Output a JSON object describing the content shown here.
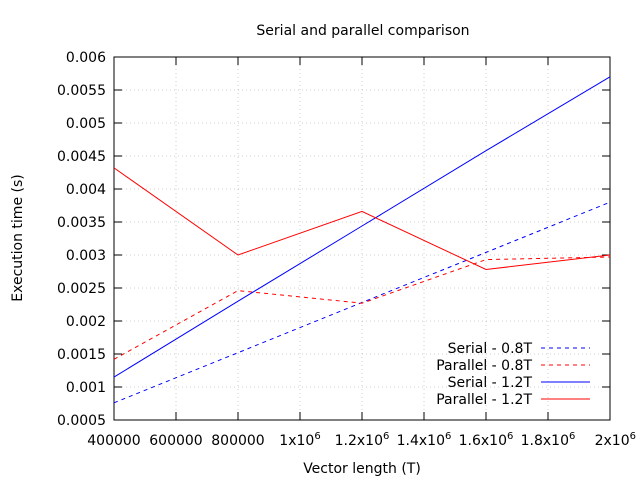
{
  "chart_data": {
    "type": "line",
    "title": "Serial and parallel comparison",
    "xlabel": "Vector length (T)",
    "ylabel": "Execution time (s)",
    "xlim": [
      400000,
      2000000
    ],
    "ylim": [
      0.0005,
      0.006
    ],
    "x_ticks": [
      {
        "value": 400000,
        "label": "400000"
      },
      {
        "value": 600000,
        "label": "600000"
      },
      {
        "value": 800000,
        "label": "800000"
      },
      {
        "value": 1000000,
        "label": "1x10",
        "exp": "6"
      },
      {
        "value": 1200000,
        "label": "1.2x10",
        "exp": "6"
      },
      {
        "value": 1400000,
        "label": "1.4x10",
        "exp": "6"
      },
      {
        "value": 1600000,
        "label": "1.6x10",
        "exp": "6"
      },
      {
        "value": 1800000,
        "label": "1.8x10",
        "exp": "6"
      },
      {
        "value": 2000000,
        "label": "2x10",
        "exp": "6"
      }
    ],
    "y_ticks": [
      {
        "value": 0.0005,
        "label": "0.0005"
      },
      {
        "value": 0.001,
        "label": "0.001"
      },
      {
        "value": 0.0015,
        "label": "0.0015"
      },
      {
        "value": 0.002,
        "label": "0.002"
      },
      {
        "value": 0.0025,
        "label": "0.0025"
      },
      {
        "value": 0.003,
        "label": "0.003"
      },
      {
        "value": 0.0035,
        "label": "0.0035"
      },
      {
        "value": 0.004,
        "label": "0.004"
      },
      {
        "value": 0.0045,
        "label": "0.0045"
      },
      {
        "value": 0.005,
        "label": "0.005"
      },
      {
        "value": 0.0055,
        "label": "0.0055"
      },
      {
        "value": 0.006,
        "label": "0.006"
      }
    ],
    "grid": true,
    "legend_position": "bottom-right",
    "x": [
      400000,
      800000,
      1200000,
      1600000,
      2000000
    ],
    "series": [
      {
        "name": "Serial - 0.8T",
        "color": "#0000ff",
        "dash": true,
        "values": [
          0.00076,
          0.00152,
          0.00228,
          0.00304,
          0.0038
        ]
      },
      {
        "name": "Parallel - 0.8T",
        "color": "#ff0000",
        "dash": true,
        "values": [
          0.00142,
          0.00246,
          0.00227,
          0.00293,
          0.00297
        ]
      },
      {
        "name": "Serial - 1.2T",
        "color": "#0000ff",
        "dash": false,
        "values": [
          0.00115,
          0.0023,
          0.00344,
          0.00458,
          0.0057
        ]
      },
      {
        "name": "Parallel - 1.2T",
        "color": "#ff0000",
        "dash": false,
        "values": [
          0.00432,
          0.003,
          0.00366,
          0.00278,
          0.003
        ]
      }
    ]
  }
}
